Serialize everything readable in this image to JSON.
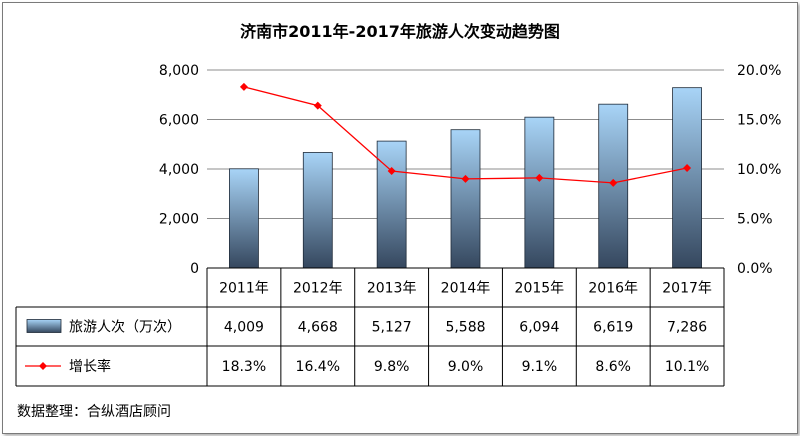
{
  "chart_data": {
    "type": "bar",
    "title": "济南市2011年-2017年旅游人次变动趋势图",
    "categories": [
      "2011年",
      "2012年",
      "2013年",
      "2014年",
      "2015年",
      "2016年",
      "2017年"
    ],
    "series": [
      {
        "name": "旅游人次（万次）",
        "kind": "bar",
        "axis": "left",
        "values": [
          4009,
          4668,
          5127,
          5588,
          6094,
          6619,
          7286
        ],
        "labels": [
          "4,009",
          "4,668",
          "5,127",
          "5,588",
          "6,094",
          "6,619",
          "7,286"
        ],
        "color_top": "#a8d4f7",
        "color_bottom": "#35475e"
      },
      {
        "name": "增长率",
        "kind": "line",
        "axis": "right",
        "values": [
          18.3,
          16.4,
          9.8,
          9.0,
          9.1,
          8.6,
          10.1
        ],
        "labels": [
          "18.3%",
          "16.4%",
          "9.8%",
          "9.0%",
          "9.1%",
          "8.6%",
          "10.1%"
        ],
        "color": "#ff0000"
      }
    ],
    "y_left": {
      "min": 0,
      "max": 8000,
      "ticks": [
        0,
        2000,
        4000,
        6000,
        8000
      ],
      "tick_labels": [
        "0",
        "2,000",
        "4,000",
        "6,000",
        "8,000"
      ]
    },
    "y_right": {
      "min": 0,
      "max": 20,
      "ticks": [
        0,
        5,
        10,
        15,
        20
      ],
      "tick_labels": [
        "0.0%",
        "5.0%",
        "10.0%",
        "15.0%",
        "20.0%"
      ]
    },
    "grid": true,
    "data_table": true
  },
  "source": "数据整理：合纵酒店顾问"
}
